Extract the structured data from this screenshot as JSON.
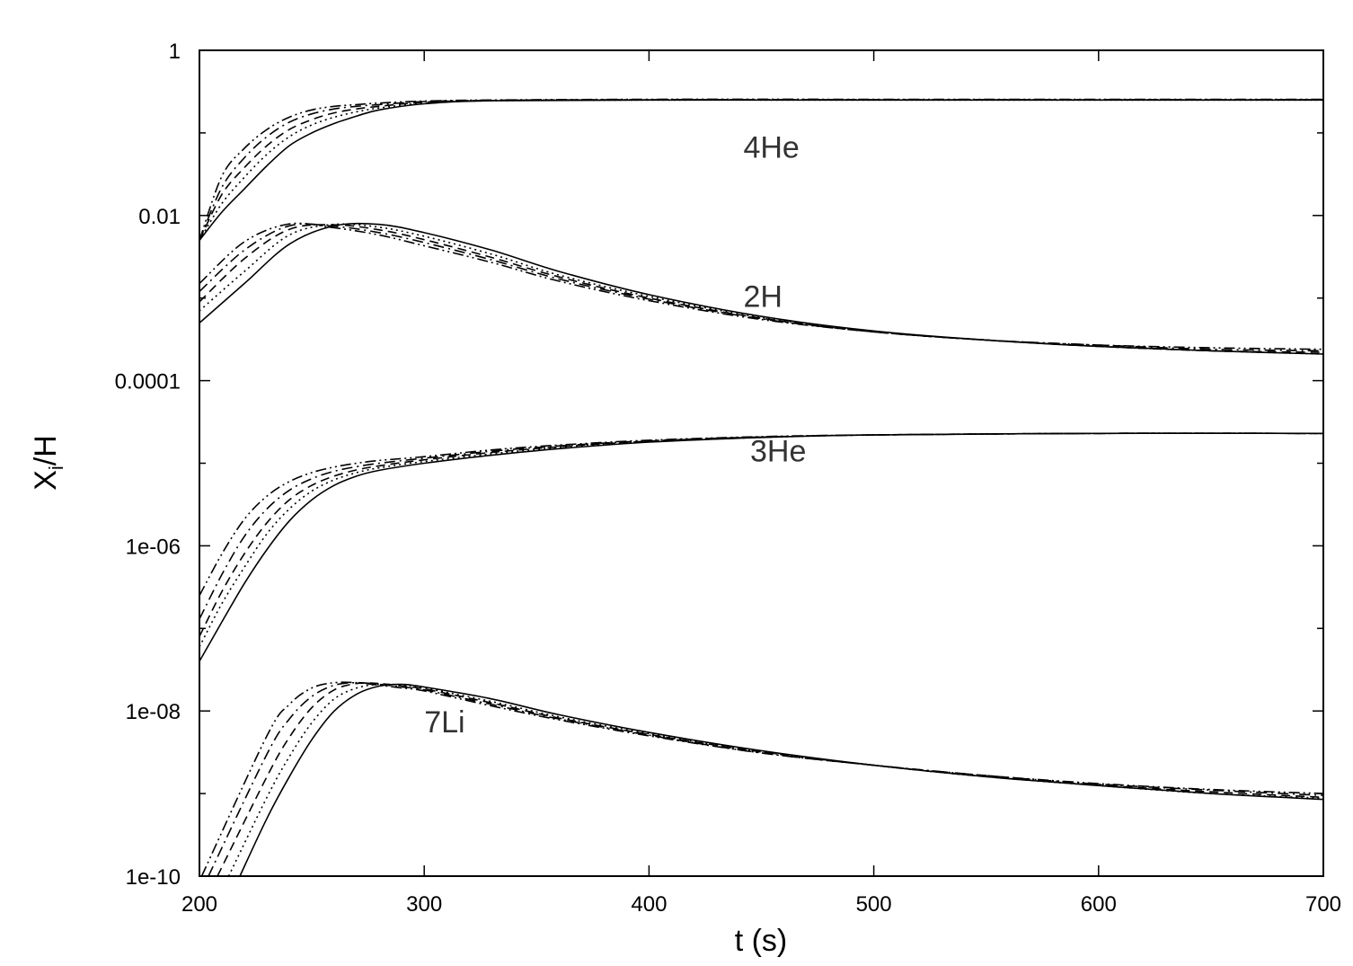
{
  "chart_data": {
    "type": "line",
    "title": "",
    "xlabel": "t (s)",
    "ylabel": "X_i/H",
    "ylabel_main": "X",
    "ylabel_sub": "i",
    "ylabel_rest": "/H",
    "xlim": [
      200,
      700
    ],
    "ylim": [
      1e-10,
      1
    ],
    "yscale": "log",
    "grid": false,
    "x_ticks": [
      200,
      300,
      400,
      500,
      600,
      700
    ],
    "x_tick_labels": [
      "200",
      "300",
      "400",
      "500",
      "600",
      "700"
    ],
    "y_ticks": [
      1,
      0.01,
      0.0001,
      1e-06,
      1e-08,
      1e-10
    ],
    "y_tick_labels": [
      "1",
      "0.01",
      "0.0001",
      "1e-06",
      "1e-08",
      "1e-10"
    ],
    "y_minor_ticks": [
      0.1,
      0.001,
      1e-05,
      1e-07,
      1e-09
    ],
    "line_styles": [
      "solid",
      "dotted",
      "dashed",
      "dash-dot",
      "dash-dot-dot"
    ],
    "annotations": [
      {
        "text": "4He",
        "x": 442,
        "y": 0.05
      },
      {
        "text": "2H",
        "x": 442,
        "y": 0.00078
      },
      {
        "text": "3He",
        "x": 445,
        "y": 1.05e-05
      },
      {
        "text": "7Li",
        "x": 300,
        "y": 5.5e-09
      }
    ],
    "species": [
      {
        "label": "4He",
        "series": [
          {
            "x": [
              200,
              210,
              220,
              230,
              240,
              250,
              260,
              270,
              280,
              300,
              330,
              400,
              500,
              600,
              700
            ],
            "y": [
              0.005,
              0.011,
              0.021,
              0.04,
              0.07,
              0.1,
              0.13,
              0.16,
              0.19,
              0.225,
              0.245,
              0.25,
              0.25,
              0.25,
              0.25
            ]
          },
          {
            "x": [
              200,
              210,
              220,
              230,
              240,
              250,
              260,
              270,
              280,
              300,
              330,
              400,
              500,
              600,
              700
            ],
            "y": [
              0.005,
              0.014,
              0.029,
              0.055,
              0.09,
              0.125,
              0.155,
              0.18,
              0.2,
              0.23,
              0.245,
              0.25,
              0.25,
              0.25,
              0.25
            ]
          },
          {
            "x": [
              200,
              210,
              220,
              230,
              240,
              250,
              260,
              270,
              280,
              300,
              330,
              400,
              500,
              600,
              700
            ],
            "y": [
              0.005,
              0.018,
              0.038,
              0.07,
              0.11,
              0.145,
              0.175,
              0.195,
              0.21,
              0.235,
              0.247,
              0.252,
              0.252,
              0.252,
              0.252
            ]
          },
          {
            "x": [
              200,
              210,
              220,
              230,
              240,
              250,
              260,
              270,
              280,
              300,
              330,
              400,
              500,
              600,
              700
            ],
            "y": [
              0.005,
              0.022,
              0.05,
              0.09,
              0.135,
              0.17,
              0.195,
              0.21,
              0.22,
              0.24,
              0.248,
              0.253,
              0.253,
              0.253,
              0.253
            ]
          },
          {
            "x": [
              200,
              210,
              220,
              230,
              240,
              250,
              260,
              270,
              280,
              300,
              330,
              400,
              500,
              600,
              700
            ],
            "y": [
              0.005,
              0.03,
              0.065,
              0.11,
              0.155,
              0.19,
              0.21,
              0.22,
              0.23,
              0.243,
              0.25,
              0.255,
              0.255,
              0.255,
              0.255
            ]
          }
        ]
      },
      {
        "label": "2H",
        "series": [
          {
            "x": [
              200,
              220,
              240,
              260,
              280,
              300,
              330,
              360,
              400,
              450,
              500,
              550,
              600,
              650,
              700
            ],
            "y": [
              0.0005,
              0.0015,
              0.0045,
              0.0075,
              0.0078,
              0.0062,
              0.0038,
              0.0021,
              0.0011,
              0.0006,
              0.0004,
              0.00031,
              0.00026,
              0.00023,
              0.00021
            ]
          },
          {
            "x": [
              200,
              220,
              240,
              260,
              280,
              300,
              330,
              360,
              400,
              450,
              500,
              550,
              600,
              650,
              700
            ],
            "y": [
              0.0007,
              0.0021,
              0.0058,
              0.0078,
              0.0072,
              0.0056,
              0.0034,
              0.0019,
              0.00105,
              0.00058,
              0.00039,
              0.00031,
              0.00026,
              0.00023,
              0.00021
            ]
          },
          {
            "x": [
              200,
              220,
              240,
              260,
              280,
              300,
              330,
              360,
              400,
              450,
              500,
              550,
              600,
              650,
              700
            ],
            "y": [
              0.0009,
              0.003,
              0.0068,
              0.0077,
              0.0067,
              0.0051,
              0.0031,
              0.0018,
              0.001,
              0.00057,
              0.00039,
              0.00031,
              0.00026,
              0.00023,
              0.00022
            ]
          },
          {
            "x": [
              200,
              220,
              240,
              260,
              280,
              300,
              330,
              360,
              400,
              450,
              500,
              550,
              600,
              650,
              700
            ],
            "y": [
              0.0012,
              0.0038,
              0.0075,
              0.0074,
              0.0062,
              0.0047,
              0.0029,
              0.0017,
              0.00097,
              0.00056,
              0.00039,
              0.00031,
              0.00027,
              0.00024,
              0.00023
            ]
          },
          {
            "x": [
              200,
              220,
              240,
              260,
              280,
              300,
              330,
              360,
              400,
              450,
              500,
              550,
              600,
              650,
              700
            ],
            "y": [
              0.0015,
              0.0048,
              0.0079,
              0.0071,
              0.0058,
              0.0043,
              0.0027,
              0.0016,
              0.00093,
              0.00055,
              0.00039,
              0.00031,
              0.00027,
              0.00025,
              0.00024
            ]
          }
        ]
      },
      {
        "label": "3He",
        "series": [
          {
            "x": [
              200,
              210,
              220,
              230,
              240,
              250,
              260,
              270,
              280,
              300,
              330,
              360,
              400,
              450,
              500,
              600,
              700
            ],
            "y": [
              4e-08,
              1.2e-07,
              3.5e-07,
              9e-07,
              2e-06,
              3.6e-06,
              5.4e-06,
              7e-06,
              8.2e-06,
              1e-05,
              1.25e-05,
              1.5e-05,
              1.8e-05,
              2.05e-05,
              2.2e-05,
              2.3e-05,
              2.3e-05
            ]
          },
          {
            "x": [
              200,
              210,
              220,
              230,
              240,
              250,
              260,
              270,
              280,
              300,
              330,
              360,
              400,
              450,
              500,
              600,
              700
            ],
            "y": [
              6e-08,
              2e-07,
              5.5e-07,
              1.4e-06,
              2.8e-06,
              4.6e-06,
              6.3e-06,
              7.7e-06,
              8.8e-06,
              1.05e-05,
              1.3e-05,
              1.55e-05,
              1.82e-05,
              2.05e-05,
              2.2e-05,
              2.3e-05,
              2.3e-05
            ]
          },
          {
            "x": [
              200,
              210,
              220,
              230,
              240,
              250,
              260,
              270,
              280,
              300,
              330,
              360,
              400,
              450,
              500,
              600,
              700
            ],
            "y": [
              8e-08,
              2.8e-07,
              8e-07,
              1.9e-06,
              3.6e-06,
              5.4e-06,
              7e-06,
              8.3e-06,
              9.3e-06,
              1.1e-05,
              1.35e-05,
              1.58e-05,
              1.85e-05,
              2.07e-05,
              2.2e-05,
              2.3e-05,
              2.3e-05
            ]
          },
          {
            "x": [
              200,
              210,
              220,
              230,
              240,
              250,
              260,
              270,
              280,
              300,
              330,
              360,
              400,
              450,
              500,
              600,
              700
            ],
            "y": [
              1.3e-07,
              4.5e-07,
              1.3e-06,
              2.8e-06,
              4.7e-06,
              6.5e-06,
              8e-06,
              9.1e-06,
              1e-05,
              1.15e-05,
              1.4e-05,
              1.62e-05,
              1.87e-05,
              2.08e-05,
              2.2e-05,
              2.3e-05,
              2.3e-05
            ]
          },
          {
            "x": [
              200,
              210,
              220,
              230,
              240,
              250,
              260,
              270,
              280,
              300,
              330,
              360,
              400,
              450,
              500,
              600,
              700
            ],
            "y": [
              2.5e-07,
              8e-07,
              2.1e-06,
              4e-06,
              6e-06,
              7.7e-06,
              9e-06,
              1e-05,
              1.08e-05,
              1.2e-05,
              1.45e-05,
              1.66e-05,
              1.9e-05,
              2.1e-05,
              2.2e-05,
              2.3e-05,
              2.3e-05
            ]
          }
        ]
      },
      {
        "label": "7Li",
        "series": [
          {
            "x": [
              218,
              230,
              240,
              250,
              260,
              270,
              280,
              290,
              300,
              330,
              360,
              400,
              450,
              500,
              550,
              600,
              650,
              700
            ],
            "y": [
              1e-10,
              5e-10,
              1.6e-09,
              4.5e-09,
              1e-08,
              1.6e-08,
              2e-08,
              2.1e-08,
              1.95e-08,
              1.4e-08,
              9e-09,
              5.5e-09,
              3.3e-09,
              2.2e-09,
              1.6e-09,
              1.25e-09,
              1e-09,
              8.5e-10
            ]
          },
          {
            "x": [
              213,
              230,
              240,
              250,
              260,
              270,
              280,
              290,
              300,
              330,
              360,
              400,
              450,
              500,
              550,
              600,
              650,
              700
            ],
            "y": [
              1e-10,
              9e-10,
              2.8e-09,
              7.2e-09,
              1.4e-08,
              1.9e-08,
              2.1e-08,
              2.05e-08,
              1.9e-08,
              1.3e-08,
              8.5e-09,
              5.3e-09,
              3.2e-09,
              2.2e-09,
              1.6e-09,
              1.25e-09,
              1e-09,
              8.8e-10
            ]
          },
          {
            "x": [
              208,
              230,
              240,
              250,
              260,
              270,
              280,
              290,
              300,
              330,
              360,
              400,
              450,
              500,
              550,
              600,
              650,
              700
            ],
            "y": [
              1e-10,
              1.6e-09,
              4.8e-09,
              1.1e-08,
              1.8e-08,
              2.15e-08,
              2.15e-08,
              2e-08,
              1.85e-08,
              1.25e-08,
              8.2e-09,
              5.2e-09,
              3.2e-09,
              2.2e-09,
              1.6e-09,
              1.27e-09,
              1.05e-09,
              9e-10
            ]
          },
          {
            "x": [
              204,
              230,
              240,
              250,
              260,
              270,
              280,
              290,
              300,
              330,
              360,
              400,
              450,
              500,
              550,
              600,
              650,
              700
            ],
            "y": [
              1e-10,
              3e-09,
              8e-09,
              1.5e-08,
              2.05e-08,
              2.2e-08,
              2.1e-08,
              1.95e-08,
              1.8e-08,
              1.2e-08,
              8e-09,
              5.1e-09,
              3.1e-09,
              2.2e-09,
              1.65e-09,
              1.3e-09,
              1.1e-09,
              9.5e-10
            ]
          },
          {
            "x": [
              201,
              230,
              240,
              250,
              260,
              270,
              280,
              290,
              300,
              330,
              360,
              400,
              450,
              500,
              550,
              600,
              650,
              700
            ],
            "y": [
              1e-10,
              5e-09,
              1.2e-08,
              1.9e-08,
              2.2e-08,
              2.2e-08,
              2.05e-08,
              1.9e-08,
              1.75e-08,
              1.15e-08,
              7.8e-09,
              5e-09,
              3.1e-09,
              2.2e-09,
              1.65e-09,
              1.32e-09,
              1.12e-09,
              1e-09
            ]
          }
        ]
      }
    ]
  }
}
